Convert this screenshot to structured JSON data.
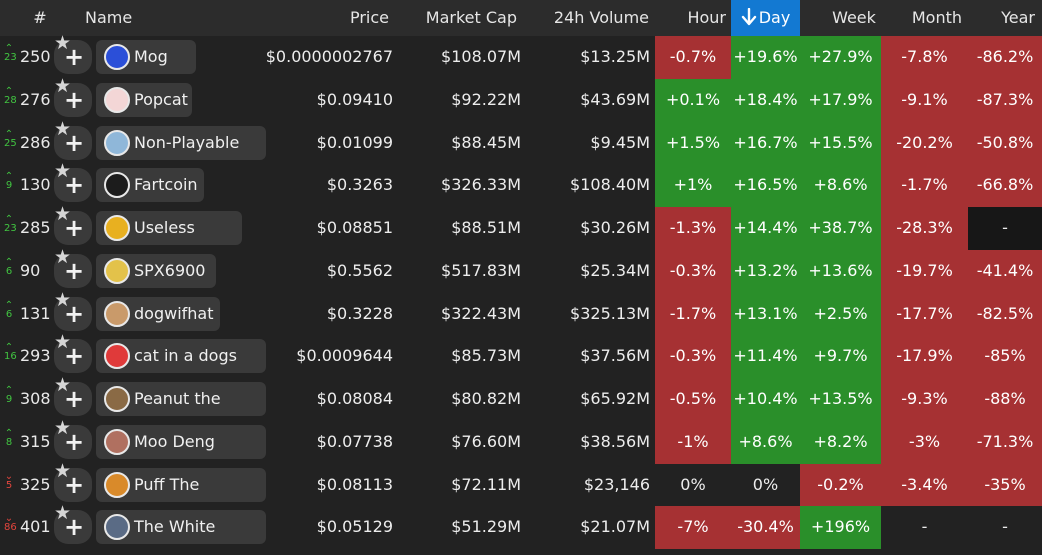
{
  "header": {
    "rank": "#",
    "name": "Name",
    "price": "Price",
    "market_cap": "Market Cap",
    "volume": "24h Volume",
    "hour": "Hour",
    "day": "Day",
    "week": "Week",
    "month": "Month",
    "year": "Year"
  },
  "colors": {
    "green": "#2a8f2a",
    "red": "#a63133",
    "sort_active": "#1379d2"
  },
  "rows": [
    {
      "delta": "23",
      "dir": "up",
      "rank": "250",
      "name": "Mog Coin",
      "icon": "mog-coin-icon",
      "icon_color": "#2b4fd8",
      "price": "$0.0000002767",
      "mcap": "$108.07M",
      "vol": "$13.25M",
      "hour": "-0.7%",
      "day": "+19.6%",
      "week": "+27.9%",
      "month": "-7.8%",
      "year": "-86.2%"
    },
    {
      "delta": "28",
      "dir": "up",
      "rank": "276",
      "name": "Popcat",
      "icon": "popcat-icon",
      "icon_color": "#f3d6d6",
      "price": "$0.09410",
      "mcap": "$92.22M",
      "vol": "$43.69M",
      "hour": "+0.1%",
      "day": "+18.4%",
      "week": "+17.9%",
      "month": "-9.1%",
      "year": "-87.3%"
    },
    {
      "delta": "25",
      "dir": "up",
      "rank": "286",
      "name": "Non-Playable Coin",
      "icon": "non-playable-coin-icon",
      "icon_color": "#8fb7d9",
      "price": "$0.01099",
      "mcap": "$88.45M",
      "vol": "$9.45M",
      "hour": "+1.5%",
      "day": "+16.7%",
      "week": "+15.5%",
      "month": "-20.2%",
      "year": "-50.8%"
    },
    {
      "delta": "9",
      "dir": "up",
      "rank": "130",
      "name": "Fartcoin",
      "icon": "fartcoin-icon",
      "icon_color": "#1c1c1c",
      "price": "$0.3263",
      "mcap": "$326.33M",
      "vol": "$108.40M",
      "hour": "+1%",
      "day": "+16.5%",
      "week": "+8.6%",
      "month": "-1.7%",
      "year": "-66.8%"
    },
    {
      "delta": "23",
      "dir": "up",
      "rank": "285",
      "name": "Useless Coin",
      "icon": "useless-coin-icon",
      "icon_color": "#e8b020",
      "price": "$0.08851",
      "mcap": "$88.51M",
      "vol": "$30.26M",
      "hour": "-1.3%",
      "day": "+14.4%",
      "week": "+38.7%",
      "month": "-28.3%",
      "year": "-"
    },
    {
      "delta": "6",
      "dir": "up",
      "rank": "90",
      "name": "SPX6900",
      "icon": "spx6900-icon",
      "icon_color": "#e3c24a",
      "price": "$0.5562",
      "mcap": "$517.83M",
      "vol": "$25.34M",
      "hour": "-0.3%",
      "day": "+13.2%",
      "week": "+13.6%",
      "month": "-19.7%",
      "year": "-41.4%"
    },
    {
      "delta": "6",
      "dir": "up",
      "rank": "131",
      "name": "dogwifhat",
      "icon": "dogwifhat-icon",
      "icon_color": "#c99a6a",
      "price": "$0.3228",
      "mcap": "$322.43M",
      "vol": "$325.13M",
      "hour": "-1.7%",
      "day": "+13.1%",
      "week": "+2.5%",
      "month": "-17.7%",
      "year": "-82.5%"
    },
    {
      "delta": "16",
      "dir": "up",
      "rank": "293",
      "name": "cat in a dogs world",
      "icon": "cat-in-a-dogs-world-icon",
      "icon_color": "#e03a3a",
      "price": "$0.0009644",
      "mcap": "$85.73M",
      "vol": "$37.56M",
      "hour": "-0.3%",
      "day": "+11.4%",
      "week": "+9.7%",
      "month": "-17.9%",
      "year": "-85%"
    },
    {
      "delta": "9",
      "dir": "up",
      "rank": "308",
      "name": "Peanut the Squirrel",
      "icon": "peanut-the-squirrel-icon",
      "icon_color": "#8a6a45",
      "price": "$0.08084",
      "mcap": "$80.82M",
      "vol": "$65.92M",
      "hour": "-0.5%",
      "day": "+10.4%",
      "week": "+13.5%",
      "month": "-9.3%",
      "year": "-88%"
    },
    {
      "delta": "8",
      "dir": "up",
      "rank": "315",
      "name": "Moo Deng (SOL)",
      "icon": "moo-deng-icon",
      "icon_color": "#b07060",
      "price": "$0.07738",
      "mcap": "$76.60M",
      "vol": "$38.56M",
      "hour": "-1%",
      "day": "+8.6%",
      "week": "+8.2%",
      "month": "-3%",
      "year": "-71.3%"
    },
    {
      "delta": "5",
      "dir": "down",
      "rank": "325",
      "name": "Puff The Dragon",
      "icon": "puff-the-dragon-icon",
      "icon_color": "#d98a2a",
      "price": "$0.08113",
      "mcap": "$72.11M",
      "vol": "$23,146",
      "hour": "0%",
      "day": "0%",
      "week": "-0.2%",
      "month": "-3.4%",
      "year": "-35%"
    },
    {
      "delta": "86",
      "dir": "down",
      "rank": "401",
      "name": "The White Whale",
      "icon": "white-whale-icon",
      "icon_color": "#5a6b85",
      "price": "$0.05129",
      "mcap": "$51.29M",
      "vol": "$21.07M",
      "hour": "-7%",
      "day": "-30.4%",
      "week": "+196%",
      "month": "-",
      "year": "-"
    }
  ]
}
